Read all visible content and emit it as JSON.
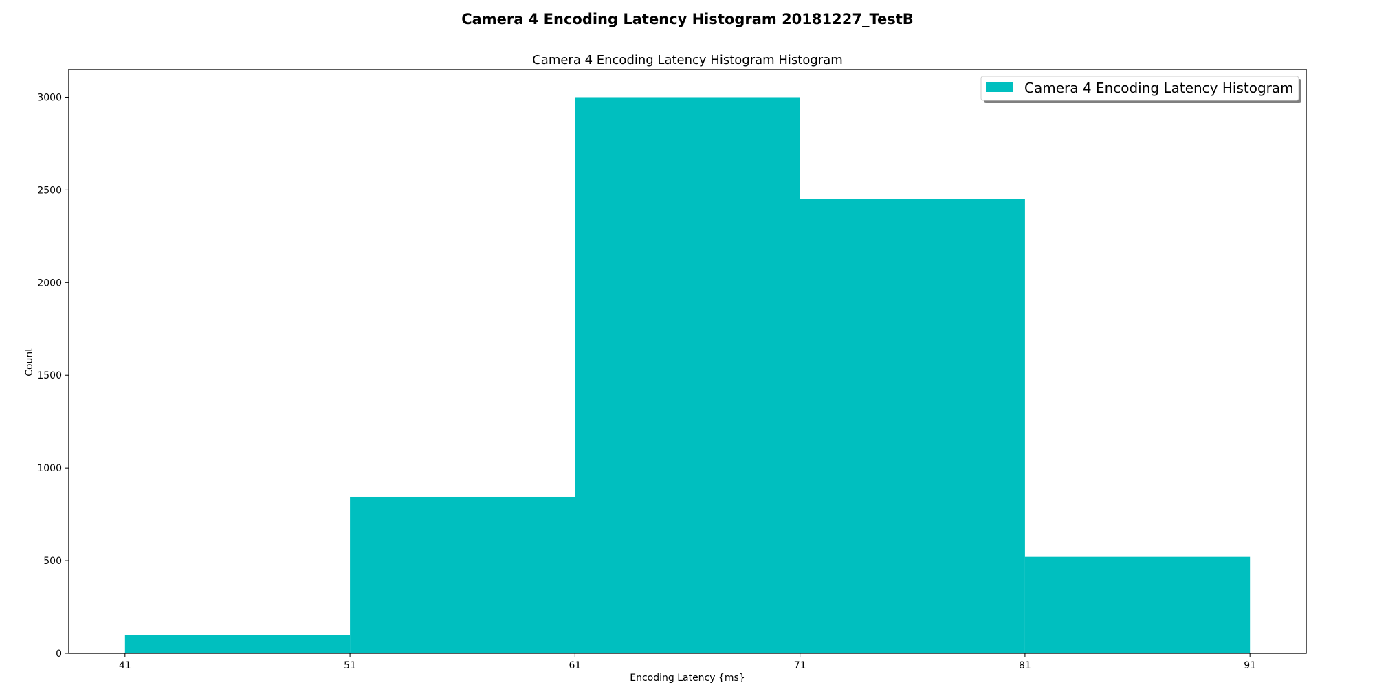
{
  "figure": {
    "suptitle": "Camera 4 Encoding Latency Histogram 20181227_TestB"
  },
  "chart_data": {
    "type": "bar",
    "title": "Camera 4 Encoding Latency Histogram Histogram",
    "xlabel": "Encoding Latency {ms}",
    "ylabel": "Count",
    "bin_edges": [
      41,
      51,
      61,
      71,
      81,
      91
    ],
    "values": [
      100,
      845,
      3000,
      2450,
      520
    ],
    "xticks": [
      "41",
      "51",
      "61",
      "71",
      "81",
      "91"
    ],
    "yticks": [
      "0",
      "500",
      "1000",
      "1500",
      "2000",
      "2500",
      "3000"
    ],
    "xlim": [
      38.5,
      93.5
    ],
    "ylim": [
      0,
      3150
    ],
    "series": [
      {
        "name": "Camera 4 Encoding Latency Histogram",
        "color": "#00bfbf"
      }
    ],
    "grid": false,
    "legend_position": "upper right"
  }
}
